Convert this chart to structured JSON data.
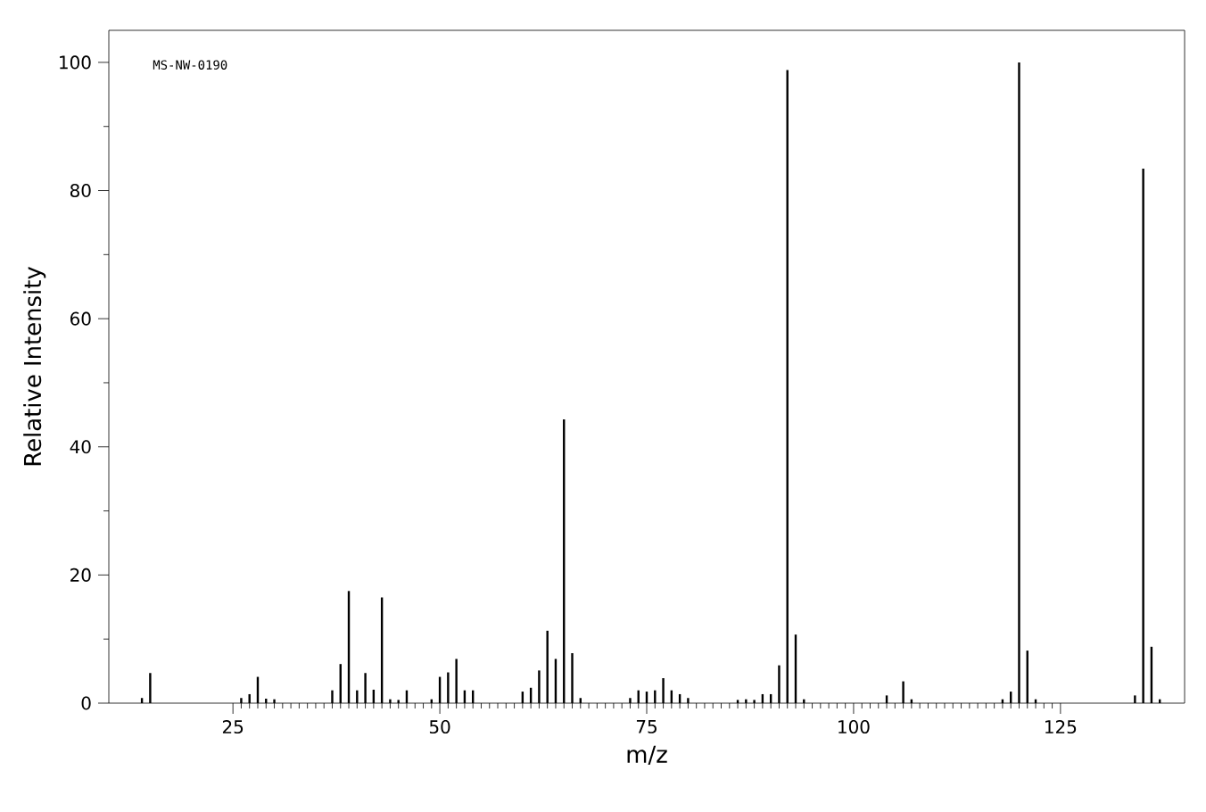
{
  "chart_data": {
    "type": "bar",
    "xlabel": "m/z",
    "ylabel": "Relative Intensity",
    "annotations": [
      "MS-NW-0190"
    ],
    "x": [
      14,
      15,
      26,
      27,
      28,
      29,
      30,
      37,
      38,
      39,
      40,
      41,
      42,
      43,
      44,
      45,
      46,
      49,
      50,
      51,
      52,
      53,
      54,
      60,
      61,
      62,
      63,
      64,
      65,
      66,
      67,
      73,
      74,
      75,
      76,
      77,
      78,
      79,
      80,
      86,
      87,
      88,
      89,
      90,
      91,
      92,
      93,
      94,
      104,
      106,
      107,
      118,
      119,
      120,
      121,
      122,
      134,
      135,
      136,
      137
    ],
    "values": [
      0.8,
      4.7,
      0.8,
      1.4,
      4.1,
      0.7,
      0.6,
      2.0,
      6.1,
      17.5,
      2.0,
      4.7,
      2.1,
      16.5,
      0.6,
      0.5,
      2.0,
      0.6,
      4.1,
      4.8,
      6.9,
      2.0,
      2.0,
      1.8,
      2.4,
      5.1,
      11.3,
      6.9,
      44.3,
      7.8,
      0.8,
      0.8,
      2.0,
      1.8,
      2.0,
      3.9,
      2.0,
      1.4,
      0.8,
      0.5,
      0.6,
      0.5,
      1.4,
      1.4,
      5.9,
      98.8,
      10.7,
      0.6,
      1.2,
      3.4,
      0.6,
      0.6,
      1.8,
      100,
      8.2,
      0.6,
      1.2,
      83.4,
      8.8,
      0.6
    ],
    "color": "#000000",
    "xlim": [
      10,
      140
    ],
    "ylim": [
      0,
      105
    ],
    "xticks": [
      25,
      50,
      75,
      100,
      125
    ],
    "yticks": [
      0,
      20,
      40,
      60,
      80,
      100
    ]
  }
}
